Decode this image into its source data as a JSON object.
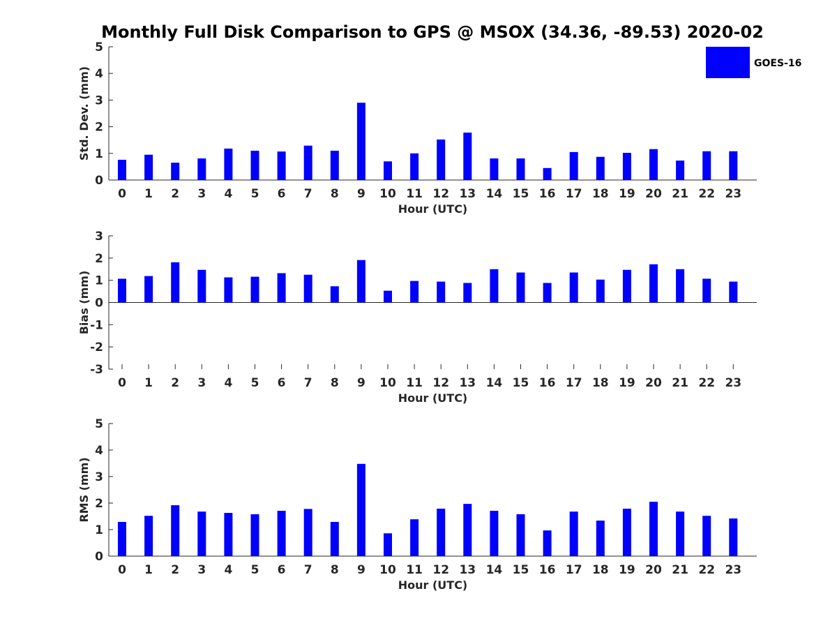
{
  "title": "Monthly Full Disk Comparison to GPS @ MSOX (34.36, -89.53) 2020-02",
  "legend": {
    "label": "GOES-16",
    "color": "#0000ff"
  },
  "chart_data": [
    {
      "type": "bar",
      "xlabel": "Hour (UTC)",
      "ylabel": "Std. Dev. (mm)",
      "ylim": [
        0,
        5
      ],
      "yticks": [
        0,
        1,
        2,
        3,
        4,
        5
      ],
      "categories": [
        "0",
        "1",
        "2",
        "3",
        "4",
        "5",
        "6",
        "7",
        "8",
        "9",
        "10",
        "11",
        "12",
        "13",
        "14",
        "15",
        "16",
        "17",
        "18",
        "19",
        "20",
        "21",
        "22",
        "23"
      ],
      "series": [
        {
          "name": "GOES-16",
          "color": "#0000ff",
          "values": [
            0.76,
            0.95,
            0.65,
            0.81,
            1.18,
            1.1,
            1.07,
            1.29,
            1.1,
            2.9,
            0.7,
            1.0,
            1.52,
            1.78,
            0.81,
            0.81,
            0.45,
            1.05,
            0.87,
            1.02,
            1.16,
            0.73,
            1.08,
            1.08
          ]
        }
      ]
    },
    {
      "type": "bar",
      "xlabel": "Hour (UTC)",
      "ylabel": "Bias (mm)",
      "ylim": [
        -3,
        3
      ],
      "yticks": [
        -3,
        -2,
        -1,
        0,
        1,
        2,
        3
      ],
      "categories": [
        "0",
        "1",
        "2",
        "3",
        "4",
        "5",
        "6",
        "7",
        "8",
        "9",
        "10",
        "11",
        "12",
        "13",
        "14",
        "15",
        "16",
        "17",
        "18",
        "19",
        "20",
        "21",
        "22",
        "23"
      ],
      "series": [
        {
          "name": "GOES-16",
          "color": "#0000ff",
          "values": [
            1.07,
            1.19,
            1.81,
            1.47,
            1.13,
            1.16,
            1.32,
            1.25,
            0.73,
            1.91,
            0.53,
            0.97,
            0.94,
            0.88,
            1.5,
            1.35,
            0.88,
            1.35,
            1.03,
            1.47,
            1.72,
            1.5,
            1.07,
            0.94
          ]
        }
      ]
    },
    {
      "type": "bar",
      "xlabel": "Hour (UTC)",
      "ylabel": "RMS (mm)",
      "ylim": [
        0,
        5
      ],
      "yticks": [
        0,
        1,
        2,
        3,
        4,
        5
      ],
      "categories": [
        "0",
        "1",
        "2",
        "3",
        "4",
        "5",
        "6",
        "7",
        "8",
        "9",
        "10",
        "11",
        "12",
        "13",
        "14",
        "15",
        "16",
        "17",
        "18",
        "19",
        "20",
        "21",
        "22",
        "23"
      ],
      "series": [
        {
          "name": "GOES-16",
          "color": "#0000ff",
          "values": [
            1.29,
            1.52,
            1.92,
            1.68,
            1.63,
            1.58,
            1.71,
            1.78,
            1.29,
            3.48,
            0.86,
            1.39,
            1.79,
            1.97,
            1.71,
            1.58,
            0.97,
            1.68,
            1.34,
            1.79,
            2.05,
            1.68,
            1.52,
            1.42
          ]
        }
      ]
    }
  ]
}
